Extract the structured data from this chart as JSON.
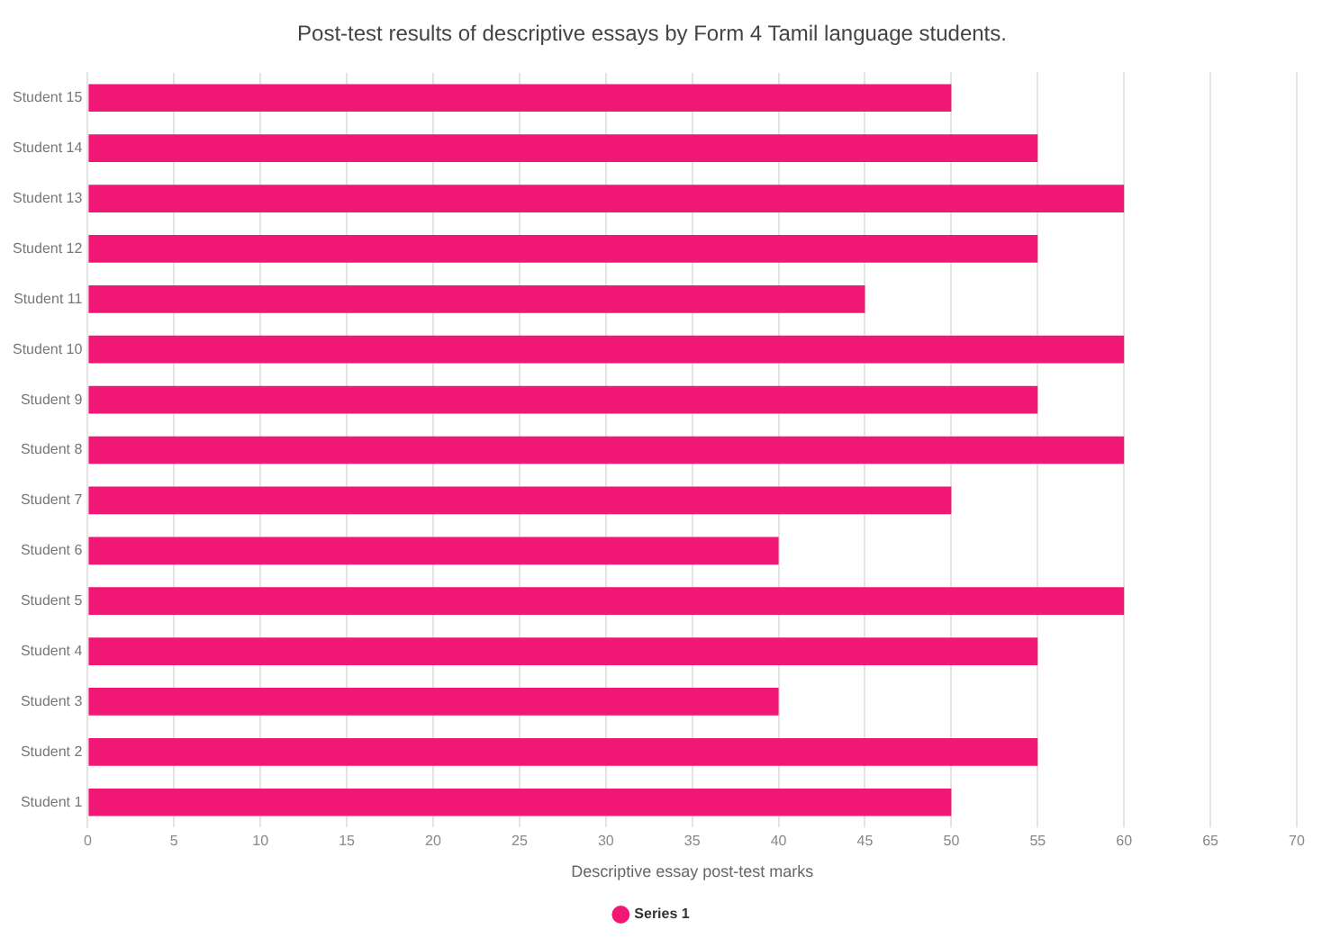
{
  "chart_data": {
    "type": "bar",
    "orientation": "horizontal",
    "title": "Post-test results of descriptive essays by Form 4 Tamil language students.",
    "xlabel": "Descriptive essay post-test marks",
    "categories": [
      "Student 15",
      "Student 14",
      "Student 13",
      "Student 12",
      "Student 11",
      "Student 10",
      "Student 9",
      "Student 8",
      "Student 7",
      "Student 6",
      "Student 5",
      "Student 4",
      "Student 3",
      "Student 2",
      "Student 1"
    ],
    "series": [
      {
        "name": "Series 1",
        "color": "#f01874",
        "values": [
          50,
          55,
          60,
          55,
          45,
          60,
          55,
          60,
          50,
          40,
          60,
          55,
          40,
          55,
          50
        ]
      }
    ],
    "xlim": [
      0,
      70
    ],
    "xticks": [
      0,
      5,
      10,
      15,
      20,
      25,
      30,
      35,
      40,
      45,
      50,
      55,
      60,
      65,
      70
    ],
    "grid": "x",
    "legend": "bottom"
  }
}
